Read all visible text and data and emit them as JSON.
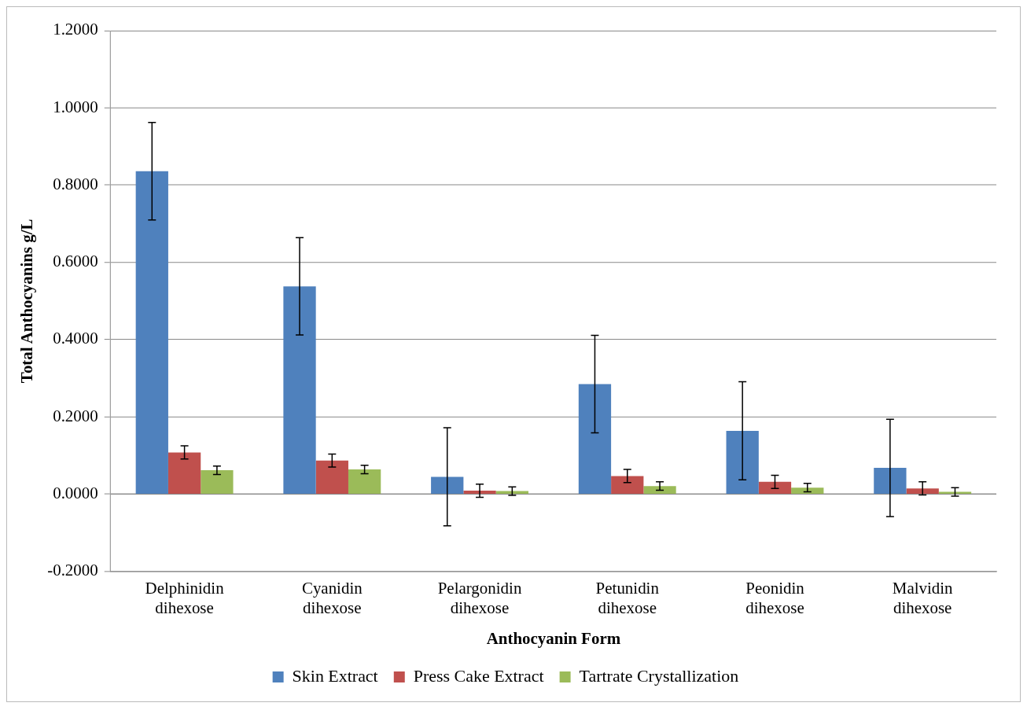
{
  "chart_data": {
    "type": "bar",
    "xlabel": "Anthocyanin Form",
    "ylabel": "Total Anthocyanins g/L",
    "categories": [
      "Delphinidin dihexose",
      "Cyanidin dihexose",
      "Pelargonidin dihexose",
      "Petunidin dihexose",
      "Peonidin dihexose",
      "Malvidin dihexose"
    ],
    "series": [
      {
        "name": "Skin Extract",
        "color": "#4f81bd",
        "values": [
          0.836,
          0.538,
          0.045,
          0.285,
          0.164,
          0.068
        ],
        "errors": [
          0.126,
          0.126,
          0.127,
          0.126,
          0.127,
          0.126
        ]
      },
      {
        "name": "Press Cake Extract",
        "color": "#c0504d",
        "values": [
          0.108,
          0.087,
          0.009,
          0.047,
          0.032,
          0.015
        ],
        "errors": [
          0.017,
          0.017,
          0.017,
          0.017,
          0.017,
          0.017
        ]
      },
      {
        "name": "Tartrate Crystallization",
        "color": "#9bbb59",
        "values": [
          0.062,
          0.064,
          0.008,
          0.021,
          0.017,
          0.006
        ],
        "errors": [
          0.011,
          0.011,
          0.011,
          0.011,
          0.011,
          0.011
        ]
      }
    ],
    "ylim": [
      -0.2,
      1.2
    ],
    "yticks": [
      {
        "value": -0.2,
        "label": "-0.2000"
      },
      {
        "value": 0,
        "label": "0.0000"
      },
      {
        "value": 0.2,
        "label": "0.2000"
      },
      {
        "value": 0.4,
        "label": "0.4000"
      },
      {
        "value": 0.6,
        "label": "0.6000"
      },
      {
        "value": 0.8,
        "label": "0.8000"
      },
      {
        "value": 1,
        "label": "1.0000"
      },
      {
        "value": 1.2,
        "label": "1.2000"
      }
    ],
    "grid": "y",
    "legend": "bottom"
  }
}
